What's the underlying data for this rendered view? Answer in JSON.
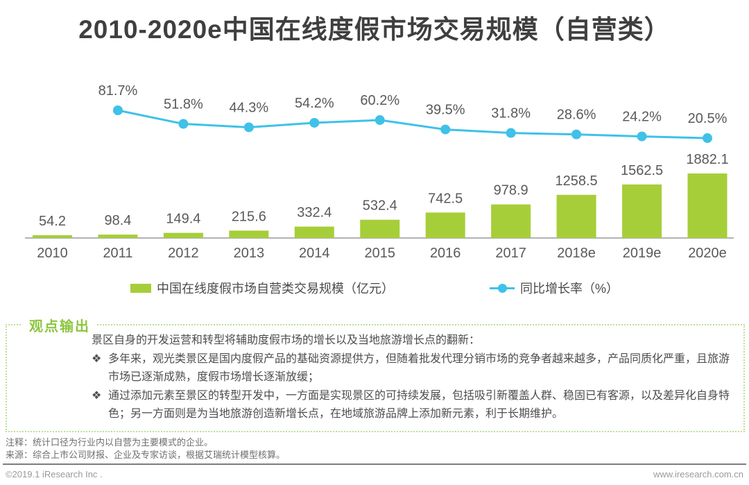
{
  "title": "2010-2020e中国在线度假市场交易规模（自营类）",
  "chart_data": {
    "type": "combo",
    "categories": [
      "2010",
      "2011",
      "2012",
      "2013",
      "2014",
      "2015",
      "2016",
      "2017",
      "2018e",
      "2019e",
      "2020e"
    ],
    "series": [
      {
        "name": "中国在线度假市场自营类交易规模（亿元）",
        "type": "bar",
        "color": "#a6ce39",
        "values": [
          54.2,
          98.4,
          149.4,
          215.6,
          332.4,
          532.4,
          742.5,
          978.9,
          1258.5,
          1562.5,
          1882.1
        ]
      },
      {
        "name": "同比增长率（%）",
        "type": "line",
        "color": "#3fc1e8",
        "values": [
          null,
          81.7,
          51.8,
          44.3,
          54.2,
          60.2,
          39.5,
          31.8,
          28.6,
          24.2,
          20.5
        ]
      }
    ],
    "title": "2010-2020e中国在线度假市场交易规模（自营类）",
    "xlabel": "",
    "ylabel": "",
    "grid": false,
    "legend_position": "bottom",
    "label_color": "#595959",
    "axis_color": "#b3b3b3"
  },
  "legend": {
    "bar_label": "中国在线度假市场自营类交易规模（亿元）",
    "line_label": "同比增长率（%）"
  },
  "viewpoint": {
    "heading": "观点输出",
    "bullet_marker": "❖",
    "intro": "景区自身的开发运营和转型将辅助度假市场的增长以及当地旅游增长点的翻新：",
    "bullets": [
      "多年来，观光类景区是国内度假产品的基础资源提供方，但随着批发代理分销市场的竞争者越来越多，产品同质化严重，且旅游市场已逐渐成熟，度假市场增长逐渐放缓；",
      "通过添加元素至景区的转型开发中，一方面是实现景区的可持续发展，包括吸引新覆盖人群、稳固已有客源，以及差异化自身特色；另一方面则是为当地旅游创造新增长点，在地域旅游品牌上添加新元素，利于长期维护。"
    ]
  },
  "notes": {
    "note1": "注释：统计口径为行业内以自营为主要模式的企业。",
    "note2": "来源：综合上市公司财报、企业及专家访谈，根据艾瑞统计模型核算。"
  },
  "footer": {
    "copyright": "©2019.1 iResearch Inc .",
    "website": "www.iresearch.com.cn"
  },
  "colors": {
    "bar_green": "#a6ce39",
    "line_cyan": "#3fc1e8",
    "accent_green": "#8cc63f"
  }
}
